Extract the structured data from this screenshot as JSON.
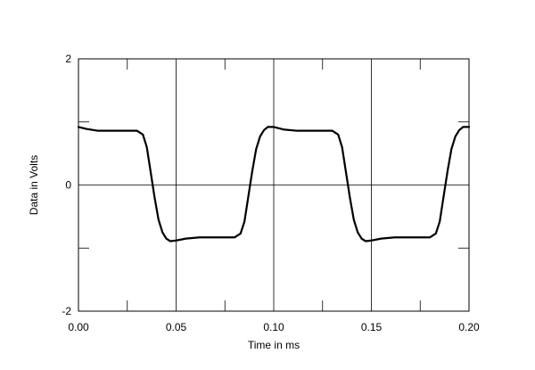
{
  "chart_data": {
    "type": "line",
    "title": "",
    "xlabel": "Time in ms",
    "ylabel": "Data in Volts",
    "xlim": [
      0,
      0.2
    ],
    "ylim": [
      -2,
      2
    ],
    "grid": true,
    "x_ticks": [
      0,
      0.05,
      0.1,
      0.15,
      0.2
    ],
    "x_tick_labels": [
      "0.00",
      "0.05",
      "0.10",
      "0.15",
      "0.20"
    ],
    "y_ticks": [
      -2,
      0,
      2
    ],
    "y_tick_labels": [
      "-2",
      "0",
      "2"
    ],
    "series": [
      {
        "color": "#000000",
        "x": [
          0.0,
          0.004,
          0.01,
          0.03,
          0.033,
          0.035,
          0.037,
          0.039,
          0.041,
          0.043,
          0.045,
          0.047,
          0.05,
          0.055,
          0.062,
          0.08,
          0.083,
          0.085,
          0.087,
          0.089,
          0.091,
          0.093,
          0.095,
          0.097,
          0.1,
          0.105,
          0.112,
          0.13,
          0.133,
          0.135,
          0.137,
          0.139,
          0.141,
          0.143,
          0.145,
          0.147,
          0.15,
          0.155,
          0.162,
          0.18,
          0.183,
          0.185,
          0.187,
          0.189,
          0.191,
          0.193,
          0.195,
          0.197,
          0.2
        ],
        "y": [
          0.92,
          0.89,
          0.86,
          0.86,
          0.8,
          0.6,
          0.2,
          -0.2,
          -0.55,
          -0.75,
          -0.85,
          -0.89,
          -0.88,
          -0.85,
          -0.83,
          -0.83,
          -0.77,
          -0.58,
          -0.18,
          0.22,
          0.57,
          0.77,
          0.87,
          0.92,
          0.92,
          0.88,
          0.86,
          0.86,
          0.8,
          0.6,
          0.2,
          -0.2,
          -0.55,
          -0.75,
          -0.85,
          -0.89,
          -0.88,
          -0.85,
          -0.83,
          -0.83,
          -0.77,
          -0.58,
          -0.18,
          0.22,
          0.57,
          0.77,
          0.87,
          0.92,
          0.92
        ]
      }
    ]
  }
}
